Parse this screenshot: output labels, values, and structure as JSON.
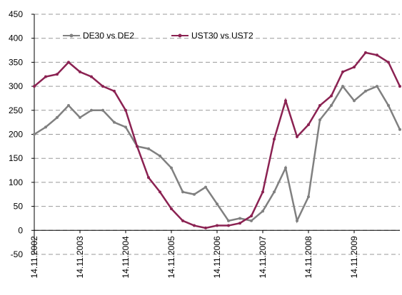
{
  "chart_data": {
    "type": "line",
    "categories": [
      "14.11.2002",
      null,
      null,
      null,
      "14.11.2003",
      null,
      null,
      null,
      "14.11.2004",
      null,
      null,
      null,
      "14.11.2005",
      null,
      null,
      null,
      "14.11.2006",
      null,
      null,
      null,
      "14.11.2007",
      null,
      null,
      null,
      "14.11.2008",
      null,
      null,
      null,
      "14.11.2009",
      null,
      null,
      null,
      null
    ],
    "series": [
      {
        "name": "DE30 vs DE2",
        "color": "#808080",
        "values": [
          200,
          215,
          235,
          260,
          235,
          250,
          250,
          225,
          215,
          175,
          170,
          155,
          130,
          80,
          75,
          90,
          55,
          20,
          25,
          20,
          40,
          80,
          130,
          20,
          70,
          230,
          260,
          300,
          270,
          290,
          300,
          260,
          210
        ]
      },
      {
        "name": "UST30 vs UST2",
        "color": "#8b2252",
        "values": [
          300,
          320,
          325,
          350,
          330,
          320,
          300,
          290,
          250,
          175,
          110,
          80,
          45,
          20,
          10,
          5,
          10,
          10,
          15,
          30,
          80,
          190,
          270,
          195,
          220,
          260,
          280,
          330,
          340,
          370,
          365,
          350,
          300
        ]
      }
    ],
    "ylim": [
      -50,
      450
    ],
    "yticks": [
      -50,
      0,
      50,
      100,
      150,
      200,
      250,
      300,
      350,
      400,
      450
    ],
    "grid": true
  }
}
